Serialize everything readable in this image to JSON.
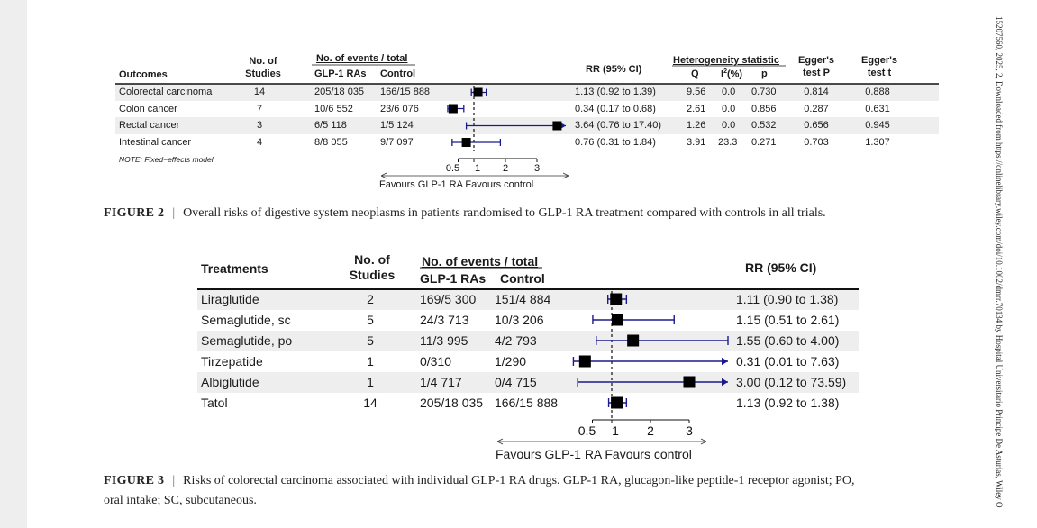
{
  "side_text": "15207560, 2025, 2, Downloaded from https://onlinelibrary.wiley.com/doi/10.1002/dmrr.70134 by Hospital Universitario Principe De Asturias, Wiley O",
  "fig2": {
    "headers": {
      "outcomes": "Outcomes",
      "studies_1": "No. of",
      "studies_2": "Studies",
      "events_group": "No. of events / total",
      "glp1": "GLP-1 RAs",
      "control": "Control",
      "rr": "RR (95% CI)",
      "het_group": "Heterogeneity statistic",
      "q": "Q",
      "i2_base": "I",
      "i2_sup": "2",
      "i2_tail": "(%)",
      "p": "p",
      "egger_p_1": "Egger's",
      "egger_p_2": "test P",
      "egger_t_1": "Egger's",
      "egger_t_2": "test t"
    },
    "rows": [
      {
        "outcome": "Colorectal carcinoma",
        "studies": "14",
        "glp1": "205/18 035",
        "control": "166/15 888",
        "rr_text": "1.13 (0.92 to 1.39)",
        "q": "9.56",
        "i2": "0.0",
        "p": "0.730",
        "egger_p": "0.814",
        "egger_t": "0.888",
        "rr": 1.13,
        "lo": 0.92,
        "hi": 1.39
      },
      {
        "outcome": "Colon cancer",
        "studies": "7",
        "glp1": "10/6 552",
        "control": "23/6 076",
        "rr_text": "0.34 (0.17 to 0.68)",
        "q": "2.61",
        "i2": "0.0",
        "p": "0.856",
        "egger_p": "0.287",
        "egger_t": "0.631",
        "rr": 0.34,
        "lo": 0.17,
        "hi": 0.68
      },
      {
        "outcome": "Rectal cancer",
        "studies": "3",
        "glp1": "6/5 118",
        "control": "1/5 124",
        "rr_text": "3.64 (0.76 to 17.40)",
        "q": "1.26",
        "i2": "0.0",
        "p": "0.532",
        "egger_p": "0.656",
        "egger_t": "0.945",
        "rr": 3.64,
        "lo": 0.76,
        "hi": 17.4
      },
      {
        "outcome": "Intestinal cancer",
        "studies": "4",
        "glp1": "8/8 055",
        "control": "9/7 097",
        "rr_text": "0.76 (0.31 to 1.84)",
        "q": "3.91",
        "i2": "23.3",
        "p": "0.271",
        "egger_p": "0.703",
        "egger_t": "1.307",
        "rr": 0.76,
        "lo": 0.31,
        "hi": 1.84
      }
    ],
    "note": "NOTE: Fixed−effects model.",
    "ticks": [
      "0.5",
      "1",
      "2",
      "3"
    ],
    "favours": "Favours GLP-1 RA  Favours control",
    "caption_label": "FIGURE 2",
    "caption_sep": "|",
    "caption_text": "Overall risks of digestive system neoplasms in patients randomised to GLP-1 RA treatment compared with controls in all trials."
  },
  "fig3": {
    "headers": {
      "treatments": "Treatments",
      "studies_1": "No. of",
      "studies_2": "Studies",
      "events_group": "No. of events / total",
      "glp1": "GLP-1 RAs",
      "control": "Control",
      "rr": "RR (95% CI)"
    },
    "rows": [
      {
        "treatment": "Liraglutide",
        "studies": "2",
        "glp1": "169/5 300",
        "control": "151/4 884",
        "rr_text": "1.11 (0.90 to 1.38)",
        "rr": 1.11,
        "lo": 0.9,
        "hi": 1.38
      },
      {
        "treatment": "Semaglutide, sc",
        "studies": "5",
        "glp1": "24/3 713",
        "control": "10/3 206",
        "rr_text": "1.15 (0.51 to 2.61)",
        "rr": 1.15,
        "lo": 0.51,
        "hi": 2.61
      },
      {
        "treatment": "Semaglutide, po",
        "studies": "5",
        "glp1": "11/3 995",
        "control": "4/2 793",
        "rr_text": "1.55 (0.60 to 4.00)",
        "rr": 1.55,
        "lo": 0.6,
        "hi": 4.0
      },
      {
        "treatment": "Tirzepatide",
        "studies": "1",
        "glp1": "0/310",
        "control": "1/290",
        "rr_text": "0.31 (0.01 to 7.63)",
        "rr": 0.31,
        "lo": 0.01,
        "hi": 7.63
      },
      {
        "treatment": "Albiglutide",
        "studies": "1",
        "glp1": "1/4 717",
        "control": "0/4 715",
        "rr_text": "3.00 (0.12 to 73.59)",
        "rr": 3.0,
        "lo": 0.12,
        "hi": 73.59
      },
      {
        "treatment": "Tatol",
        "studies": "14",
        "glp1": "205/18 035",
        "control": "166/15 888",
        "rr_text": "1.13 (0.92 to 1.38)",
        "rr": 1.13,
        "lo": 0.92,
        "hi": 1.38
      }
    ],
    "ticks": [
      "0.5",
      "1",
      "2",
      "3"
    ],
    "favours": "Favours GLP-1 RA  Favours control",
    "caption_label": "FIGURE 3",
    "caption_sep": "|",
    "caption_line1": "Risks of colorectal carcinoma associated with individual GLP-1 RA drugs. GLP-1 RA, glucagon-like peptide-1 receptor agonist; PO,",
    "caption_line2": "oral intake; SC, subcutaneous."
  },
  "chart_data": [
    {
      "type": "forest",
      "title": "FIGURE 2",
      "xlabel": "Favours GLP-1 RA  Favours control",
      "x_ticks": [
        0.5,
        1,
        2,
        3
      ],
      "reference_line": 1,
      "categories": [
        "Colorectal carcinoma",
        "Colon cancer",
        "Rectal cancer",
        "Intestinal cancer"
      ],
      "rr": [
        1.13,
        0.34,
        3.64,
        0.76
      ],
      "ci_low": [
        0.92,
        0.17,
        0.76,
        0.31
      ],
      "ci_high": [
        1.39,
        0.68,
        17.4,
        1.84
      ],
      "colors": {
        "ci": "#1a1a8c",
        "point": "#000000"
      }
    },
    {
      "type": "forest",
      "title": "FIGURE 3",
      "xlabel": "Favours GLP-1 RA  Favours control",
      "x_ticks": [
        0.5,
        1,
        2,
        3
      ],
      "reference_line": 1,
      "categories": [
        "Liraglutide",
        "Semaglutide, sc",
        "Semaglutide, po",
        "Tirzepatide",
        "Albiglutide",
        "Tatol"
      ],
      "rr": [
        1.11,
        1.15,
        1.55,
        0.31,
        3.0,
        1.13
      ],
      "ci_low": [
        0.9,
        0.51,
        0.6,
        0.01,
        0.12,
        0.92
      ],
      "ci_high": [
        1.38,
        2.61,
        4.0,
        7.63,
        73.59,
        1.38
      ],
      "colors": {
        "ci": "#1a1a8c",
        "point": "#000000"
      }
    }
  ]
}
